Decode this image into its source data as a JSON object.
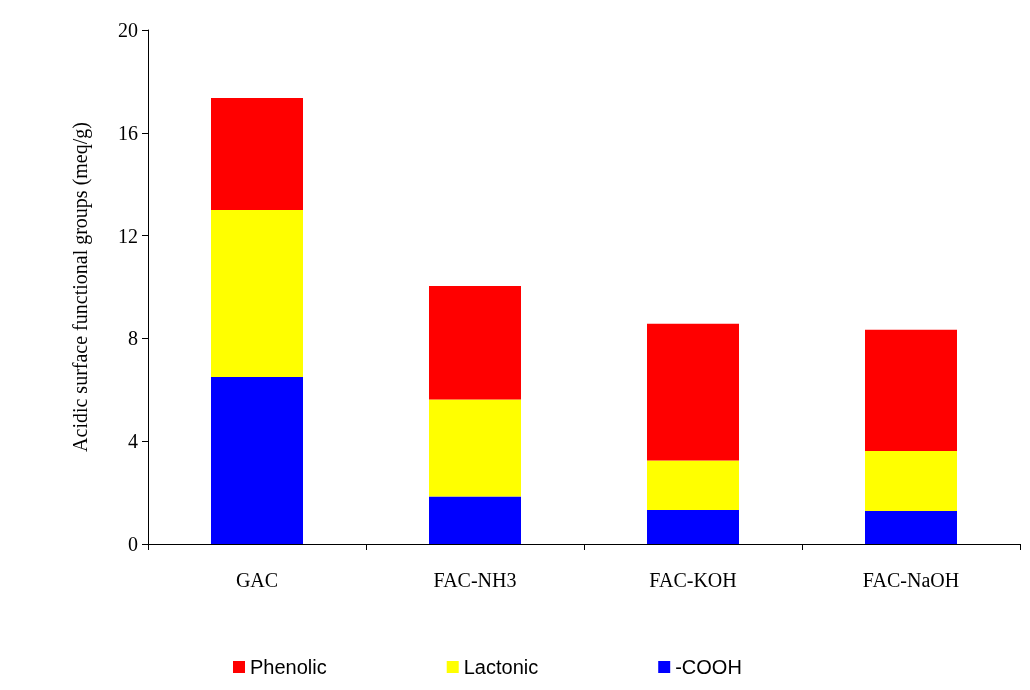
{
  "chart_data": {
    "type": "bar",
    "stacked": true,
    "ylabel": "Acidic surface functional groups (meq/g)",
    "categories": [
      "GAC",
      "FAC-NH3",
      "FAC-KOH",
      "FAC-NaOH"
    ],
    "series": [
      {
        "name": "-COOH",
        "color": "#0000ff",
        "values": [
          6.5,
          1.85,
          1.32,
          1.28
        ]
      },
      {
        "name": "Lactonic",
        "color": "#ffff00",
        "values": [
          6.5,
          3.77,
          1.93,
          2.34
        ]
      },
      {
        "name": "Phenolic",
        "color": "#ff0000",
        "values": [
          4.35,
          4.42,
          5.32,
          4.72
        ]
      }
    ],
    "ylim": [
      0,
      20
    ],
    "yticks": [
      0,
      4,
      8,
      12,
      16,
      20
    ],
    "grid": false,
    "legend": "bottom"
  }
}
